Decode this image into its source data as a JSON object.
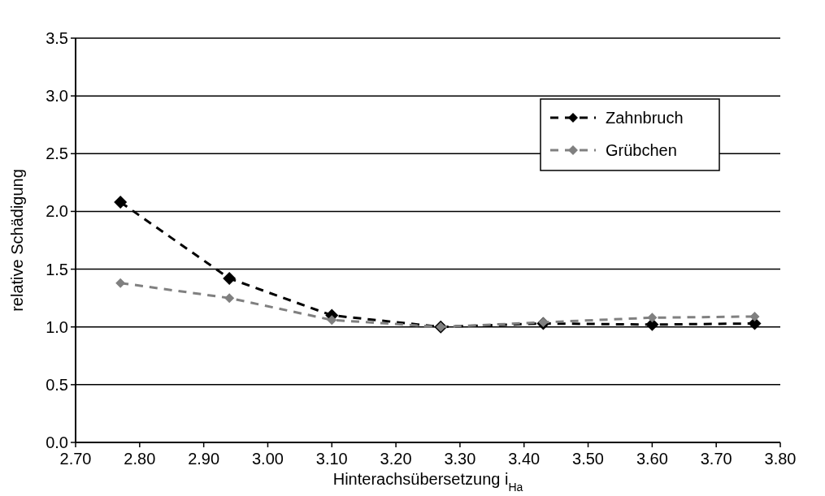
{
  "chart_data": {
    "type": "line",
    "xlabel": "Hinterachsübersetzung i$_{Ha}$",
    "ylabel": "relative Schädigung",
    "x": [
      2.77,
      2.94,
      3.1,
      3.27,
      3.43,
      3.6,
      3.76
    ],
    "series": [
      {
        "name": "Zahnbruch",
        "color": "#000000",
        "values": [
          2.08,
          1.42,
          1.1,
          1.0,
          1.03,
          1.02,
          1.03
        ]
      },
      {
        "name": "Grübchen",
        "color": "#808080",
        "values": [
          1.38,
          1.25,
          1.06,
          1.0,
          1.04,
          1.08,
          1.09
        ]
      }
    ],
    "xlim": [
      2.7,
      3.8
    ],
    "xticks": [
      {
        "value": 2.7,
        "label": "2.70"
      },
      {
        "value": 2.8,
        "label": "2.80"
      },
      {
        "value": 2.9,
        "label": "2.90"
      },
      {
        "value": 3.0,
        "label": "3.00"
      },
      {
        "value": 3.1,
        "label": "3.10"
      },
      {
        "value": 3.2,
        "label": "3.20"
      },
      {
        "value": 3.3,
        "label": "3.30"
      },
      {
        "value": 3.4,
        "label": "3.40"
      },
      {
        "value": 3.5,
        "label": "3.50"
      },
      {
        "value": 3.6,
        "label": "3.60"
      },
      {
        "value": 3.7,
        "label": "3.70"
      },
      {
        "value": 3.8,
        "label": "3.80"
      }
    ],
    "ylim": [
      0,
      3.5
    ],
    "yticks": [
      {
        "value": 0,
        "label": "0.0"
      },
      {
        "value": 0.5,
        "label": "0.5"
      },
      {
        "value": 1,
        "label": "1.0"
      },
      {
        "value": 1.5,
        "label": "1.5"
      },
      {
        "value": 2,
        "label": "2.0"
      },
      {
        "value": 2.5,
        "label": "2.5"
      },
      {
        "value": 3,
        "label": "3.0"
      },
      {
        "value": 3.5,
        "label": "3.5"
      }
    ],
    "grid": "y",
    "legend": "top right",
    "marker": "diamond",
    "line_style": "dashed"
  }
}
